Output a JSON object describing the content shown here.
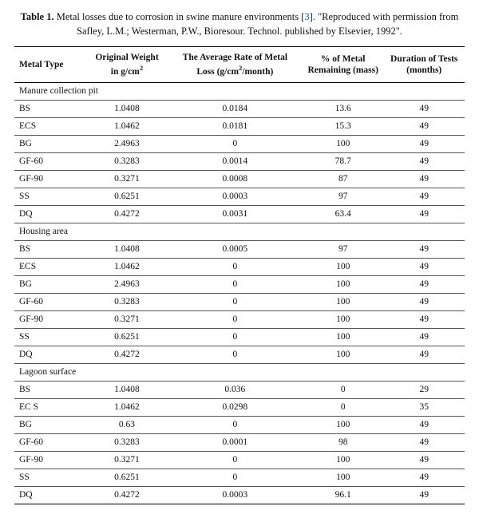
{
  "caption": {
    "label": "Table 1.",
    "text_before_ref": "Metal losses due to corrosion in swine manure environments [",
    "ref": "3",
    "text_after_ref": "]. \"Reproduced with permission from Safley, L.M.; Westerman, P.W., Bioresour. Technol. published by Elsevier, 1992\"."
  },
  "columns": {
    "c0": "Metal Type",
    "c1_l1": "Original Weight",
    "c1_l2": "in g/cm",
    "c1_sup": "2",
    "c2_l1": "The Average Rate of Metal",
    "c2_l2a": "Loss (g/cm",
    "c2_sup": "2",
    "c2_l2b": "/month)",
    "c3_l1": "% of Metal",
    "c3_l2": "Remaining (mass)",
    "c4_l1": "Duration of Tests",
    "c4_l2": "(months)"
  },
  "sections": [
    {
      "title": "Manure collection pit",
      "rows": [
        {
          "metal": "BS",
          "weight": "1.0408",
          "rate": "0.0184",
          "remain": "13.6",
          "dur": "49"
        },
        {
          "metal": "ECS",
          "weight": "1.0462",
          "rate": "0.0181",
          "remain": "15.3",
          "dur": "49"
        },
        {
          "metal": "BG",
          "weight": "2.4963",
          "rate": "0",
          "remain": "100",
          "dur": "49"
        },
        {
          "metal": "GF-60",
          "weight": "0.3283",
          "rate": "0.0014",
          "remain": "78.7",
          "dur": "49"
        },
        {
          "metal": "GF-90",
          "weight": "0.3271",
          "rate": "0.0008",
          "remain": "87",
          "dur": "49"
        },
        {
          "metal": "SS",
          "weight": "0.6251",
          "rate": "0.0003",
          "remain": "97",
          "dur": "49"
        },
        {
          "metal": "DQ",
          "weight": "0.4272",
          "rate": "0.0031",
          "remain": "63.4",
          "dur": "49"
        }
      ]
    },
    {
      "title": "Housing area",
      "rows": [
        {
          "metal": "BS",
          "weight": "1.0408",
          "rate": "0.0005",
          "remain": "97",
          "dur": "49"
        },
        {
          "metal": "ECS",
          "weight": "1.0462",
          "rate": "0",
          "remain": "100",
          "dur": "49"
        },
        {
          "metal": "BG",
          "weight": "2.4963",
          "rate": "0",
          "remain": "100",
          "dur": "49"
        },
        {
          "metal": "GF-60",
          "weight": "0.3283",
          "rate": "0",
          "remain": "100",
          "dur": "49"
        },
        {
          "metal": "GF-90",
          "weight": "0.3271",
          "rate": "0",
          "remain": "100",
          "dur": "49"
        },
        {
          "metal": "SS",
          "weight": "0.6251",
          "rate": "0",
          "remain": "100",
          "dur": "49"
        },
        {
          "metal": "DQ",
          "weight": "0.4272",
          "rate": "0",
          "remain": "100",
          "dur": "49"
        }
      ]
    },
    {
      "title": "Lagoon surface",
      "rows": [
        {
          "metal": "BS",
          "weight": "1.0408",
          "rate": "0.036",
          "remain": "0",
          "dur": "29"
        },
        {
          "metal": "EC S",
          "weight": "1.0462",
          "rate": "0.0298",
          "remain": "0",
          "dur": "35"
        },
        {
          "metal": "BG",
          "weight": "0.63",
          "rate": "0",
          "remain": "100",
          "dur": "49"
        },
        {
          "metal": "GF-60",
          "weight": "0.3283",
          "rate": "0.0001",
          "remain": "98",
          "dur": "49"
        },
        {
          "metal": "GF-90",
          "weight": "0.3271",
          "rate": "0",
          "remain": "100",
          "dur": "49"
        },
        {
          "metal": "SS",
          "weight": "0.6251",
          "rate": "0",
          "remain": "100",
          "dur": "49"
        },
        {
          "metal": "DQ",
          "weight": "0.4272",
          "rate": "0.0003",
          "remain": "96.1",
          "dur": "49"
        }
      ]
    }
  ],
  "style": {
    "col_align": [
      "left",
      "center",
      "center",
      "center",
      "center"
    ],
    "header_fontsize": 11.5,
    "body_fontsize": 11.5,
    "caption_fontsize": 12.5,
    "border_color": "#000",
    "row_border_color": "#555",
    "font_family": "Palatino Linotype",
    "background_color": "#ffffff",
    "link_color": "#0a64a4"
  }
}
